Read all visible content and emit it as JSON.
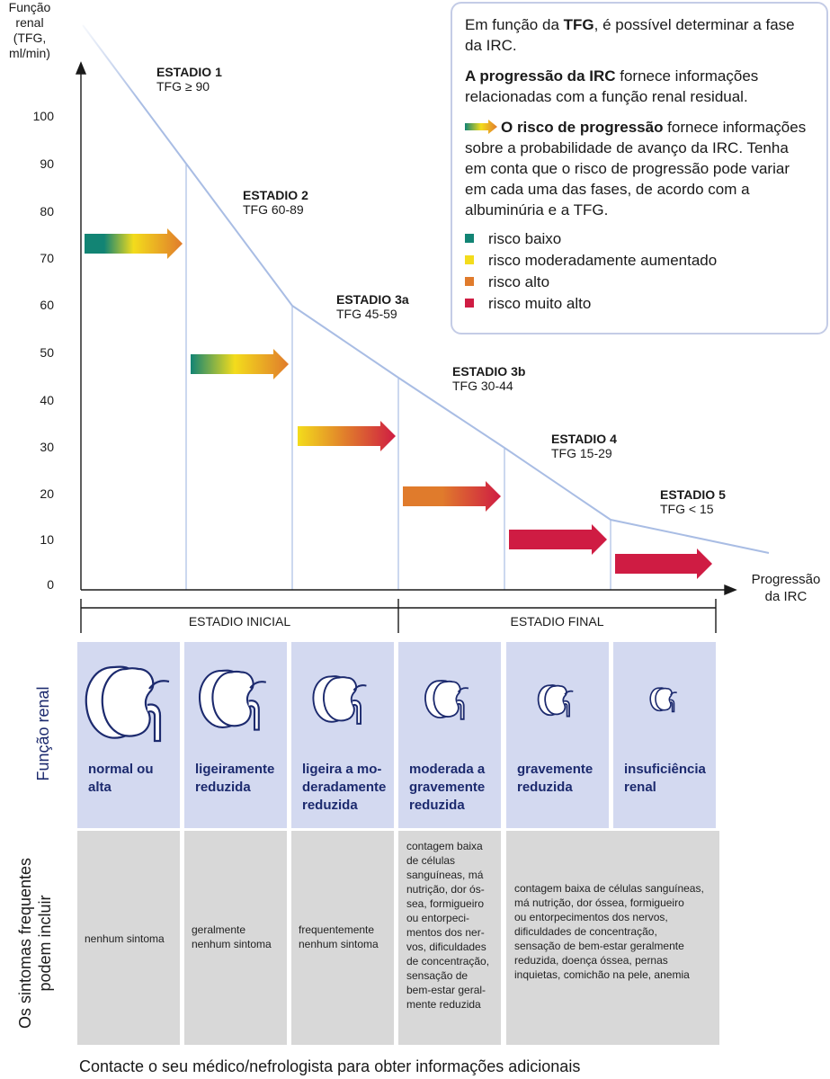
{
  "chart": {
    "y_axis_label_lines": [
      "Função",
      "renal",
      "(TFG,",
      "ml/min)"
    ],
    "x_axis_label_lines": [
      "Progressão",
      "da IRC"
    ],
    "y_ticks": [
      "0",
      "10",
      "20",
      "30",
      "40",
      "50",
      "60",
      "70",
      "80",
      "90",
      "100"
    ],
    "stages": [
      {
        "title": "ESTADIO 1",
        "range": "TFG ≥ 90"
      },
      {
        "title": "ESTADIO 2",
        "range": "TFG 60-89"
      },
      {
        "title": "ESTADIO 3a",
        "range": "TFG 45-59"
      },
      {
        "title": "ESTADIO 3b",
        "range": "TFG 30-44"
      },
      {
        "title": "ESTADIO 4",
        "range": "TFG 15-29"
      },
      {
        "title": "ESTADIO 5",
        "range": "TFG < 15"
      }
    ],
    "brackets": [
      "ESTADIO INICIAL",
      "ESTADIO FINAL"
    ],
    "colors": {
      "low": "#128474",
      "moderate": "#f3dc1c",
      "high": "#e07b2c",
      "very_high": "#cf1c43",
      "line": "#a9bde4",
      "panel": "#d3d9f0",
      "symptoms": "#d8d8d8",
      "text_blue": "#1c2a6e"
    }
  },
  "info": {
    "p1_pre": "Em função da ",
    "p1_bold": "TFG",
    "p1_post": ", é possível determinar a fase da IRC.",
    "p2_bold": "A progressão da IRC",
    "p2_post": " fornece informações relacionadas com a função renal residual.",
    "p3_bold": "O risco de progressão",
    "p3_post": " fornece informações sobre a probabilidade de avanço da IRC. Tenha em conta que o risco de progressão pode variar em cada uma das fases, de acordo com a albuminúria e a TFG.",
    "legend": [
      {
        "label": "risco baixo",
        "color": "#128474"
      },
      {
        "label": "risco moderadamente aumentado",
        "color": "#f3dc1c"
      },
      {
        "label": "risco alto",
        "color": "#e07b2c"
      },
      {
        "label": "risco muito alto",
        "color": "#cf1c43"
      }
    ]
  },
  "renal_function": {
    "side_label": "Função renal",
    "columns": [
      [
        "normal ou",
        "alta"
      ],
      [
        "ligeiramente",
        "reduzida"
      ],
      [
        "ligeira a mo-",
        "deradamente",
        "reduzida"
      ],
      [
        "moderada a",
        "gravemente",
        "reduzida"
      ],
      [
        "gravemente",
        "reduzida"
      ],
      [
        "insuficiência",
        "renal"
      ]
    ]
  },
  "symptoms": {
    "side_label_lines": [
      "Os sintomas frequentes",
      "podem incluir"
    ],
    "cells": [
      [
        "nenhum sintoma"
      ],
      [
        "geralmente",
        "nenhum sintoma"
      ],
      [
        "frequentemente",
        "nenhum sintoma"
      ],
      [
        "contagem baixa",
        "de células",
        "sanguíneas, má",
        "nutrição, dor ós-",
        "sea, formigueiro",
        "ou entorpeci-",
        "mentos dos ner-",
        "vos, dificuldades",
        "de concentração,",
        "sensação de",
        "bem-estar geral-",
        "mente reduzida"
      ],
      [
        "contagem baixa de células sanguíneas,",
        "má nutrição, dor óssea, formigueiro",
        "ou entorpecimentos dos nervos,",
        "dificuldades de concentração,",
        "sensação de bem-estar geralmente",
        "reduzida, doença óssea, pernas",
        "inquietas, comichão na pele, anemia"
      ]
    ]
  },
  "footer": "Contacte o seu médico/nefrologista para obter informações adicionais"
}
